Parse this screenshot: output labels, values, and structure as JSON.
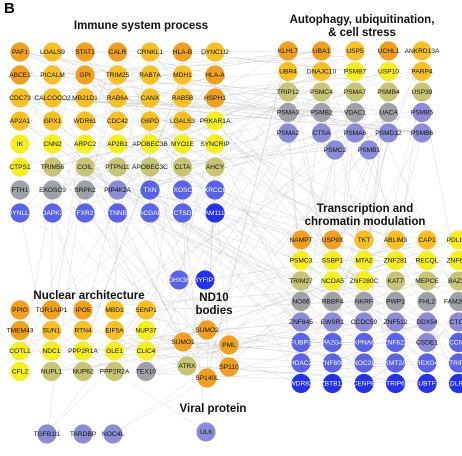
{
  "panel_letter": "B",
  "titles": {
    "immune": "Immune system process",
    "autophagy_1": "Autophagy, ubiquitination,",
    "autophagy_2": "& cell stress",
    "transcription_1": "Transcription and",
    "transcription_2": "chromatin modulation",
    "nuclear": "Nuclear architecture",
    "nd10_1": "ND10",
    "nd10_2": "bodies",
    "viral": "Viral protein"
  },
  "colors": {
    "dark_orange": "#F0A020",
    "orange": "#F6C026",
    "yellow": "#F4EE22",
    "khaki": "#C8C476",
    "gray": "#9FA1A8",
    "lavender": "#8C8CD6",
    "blue": "#5A62E6",
    "dark_blue": "#2431E8",
    "edge": "#BEBEBE"
  },
  "nodes": {
    "immune": [
      [
        "PAF1",
        "dark_orange"
      ],
      [
        "LGALS9",
        "orange"
      ],
      [
        "STAT1",
        "dark_orange"
      ],
      [
        "CALR",
        "dark_orange"
      ],
      [
        "CRNKL1",
        "orange"
      ],
      [
        "HLA-B",
        "dark_orange"
      ],
      [
        "DYNC1I2",
        "orange"
      ],
      [
        "ABCE1",
        "dark_orange"
      ],
      [
        "PICALM",
        "orange"
      ],
      [
        "GPI",
        "dark_orange"
      ],
      [
        "TRIM25",
        "orange"
      ],
      [
        "RAB7A",
        "orange"
      ],
      [
        "MDH1",
        "orange"
      ],
      [
        "HLA-A",
        "dark_orange"
      ],
      [
        "CDC73",
        "orange"
      ],
      [
        "CALCOCO2",
        "orange"
      ],
      [
        "MB21D1",
        "orange"
      ],
      [
        "RAB6A",
        "orange"
      ],
      [
        "CANX",
        "orange"
      ],
      [
        "RAB5B",
        "orange"
      ],
      [
        "HSPH1",
        "dark_orange"
      ],
      [
        "AP2A1",
        "orange"
      ],
      [
        "GPX1",
        "orange"
      ],
      [
        "WDR61",
        "orange"
      ],
      [
        "CDC42",
        "orange"
      ],
      [
        "G6PD",
        "orange"
      ],
      [
        "LGALS3",
        "orange"
      ],
      [
        "PRKAR1A",
        "yellow"
      ],
      [
        "IK",
        "yellow"
      ],
      [
        "CNN2",
        "yellow"
      ],
      [
        "ARPC2",
        "yellow"
      ],
      [
        "AP2B1",
        "yellow"
      ],
      [
        "APOBEC3B",
        "yellow"
      ],
      [
        "MYO1E",
        "yellow"
      ],
      [
        "SYNCRIP",
        "yellow"
      ],
      [
        "CTPS1",
        "yellow"
      ],
      [
        "TRIM56",
        "khaki"
      ],
      [
        "COIL",
        "khaki"
      ],
      [
        "PTPN11",
        "khaki"
      ],
      [
        "APOBEC3C",
        "khaki"
      ],
      [
        "CLTA",
        "khaki"
      ],
      [
        "AHCY",
        "khaki"
      ],
      [
        "FTH1",
        "gray"
      ],
      [
        "EXOSC9",
        "gray"
      ],
      [
        "SRPK2",
        "gray"
      ],
      [
        "PIP4K2A",
        "lavender"
      ],
      [
        "TXN",
        "blue"
      ],
      [
        "EXOSC4",
        "blue"
      ],
      [
        "XRCC6",
        "blue"
      ],
      [
        "DYNLL1",
        "blue"
      ],
      [
        "DAPK3",
        "blue"
      ],
      [
        "FXR2",
        "blue"
      ],
      [
        "CTNNB1",
        "blue"
      ],
      [
        "RACGAP1",
        "blue"
      ],
      [
        "CTSD",
        "blue"
      ],
      [
        "FAM111A",
        "dark_blue"
      ]
    ],
    "autophagy": [
      [
        "KLHL7",
        "dark_orange"
      ],
      [
        "UBA1",
        "dark_orange"
      ],
      [
        "USP5",
        "orange"
      ],
      [
        "UCHL1",
        "dark_orange"
      ],
      [
        "ANKRD13A",
        "orange"
      ],
      [
        "UBR4",
        "orange"
      ],
      [
        "DNAJC10",
        "orange"
      ],
      [
        "PSMB7",
        "yellow"
      ],
      [
        "USP10",
        "yellow"
      ],
      [
        "PARP4",
        "orange"
      ],
      [
        "TRIP12",
        "khaki"
      ],
      [
        "PSMC4",
        "khaki"
      ],
      [
        "PSMA7",
        "khaki"
      ],
      [
        "PSMB4",
        "khaki"
      ],
      [
        "USP39",
        "khaki"
      ],
      [
        "PSMA3",
        "gray"
      ],
      [
        "PSMB2",
        "gray"
      ],
      [
        "VDAC1",
        "gray"
      ],
      [
        "UACA",
        "gray"
      ],
      [
        "PSMB5",
        "lavender"
      ],
      [
        "PSMA2",
        "lavender"
      ],
      [
        "CTSA",
        "lavender"
      ],
      [
        "PSMA6",
        "lavender"
      ],
      [
        "PSMD12",
        "lavender"
      ],
      [
        "PSMB6",
        "lavender"
      ],
      [
        "PSMC2",
        "lavender"
      ],
      [
        "PSMB1",
        "lavender"
      ]
    ],
    "transcription": [
      [
        "NAMPT",
        "dark_orange"
      ],
      [
        "USP9X",
        "dark_orange"
      ],
      [
        "TKT",
        "orange"
      ],
      [
        "ABLIM3",
        "orange"
      ],
      [
        "CAP1",
        "orange"
      ],
      [
        "PDLIM1",
        "yellow"
      ],
      [
        "PSMC3",
        "yellow"
      ],
      [
        "SSBP1",
        "yellow"
      ],
      [
        "MTA2",
        "yellow"
      ],
      [
        "ZNF281",
        "yellow"
      ],
      [
        "RECQL",
        "yellow"
      ],
      [
        "ZNF638",
        "yellow"
      ],
      [
        "TRIM27",
        "khaki"
      ],
      [
        "NCOA5",
        "yellow"
      ],
      [
        "ZNF280C",
        "yellow"
      ],
      [
        "KAT7",
        "khaki"
      ],
      [
        "MEPCE",
        "khaki"
      ],
      [
        "BAZ2A",
        "khaki"
      ],
      [
        "NO66",
        "gray"
      ],
      [
        "RBBP4",
        "gray"
      ],
      [
        "NKRF",
        "gray"
      ],
      [
        "PWP1",
        "gray"
      ],
      [
        "FHL2",
        "gray"
      ],
      [
        "FAM208A",
        "gray"
      ],
      [
        "ZNF845",
        "lavender"
      ],
      [
        "EWSR1",
        "lavender"
      ],
      [
        "CCDC59",
        "lavender"
      ],
      [
        "ZNF512",
        "lavender"
      ],
      [
        "DDX54",
        "lavender"
      ],
      [
        "CTCF",
        "lavender"
      ],
      [
        "FUBP3",
        "blue"
      ],
      [
        "PA2G4",
        "blue"
      ],
      [
        "KPNA6",
        "blue"
      ],
      [
        "ZNF622",
        "blue"
      ],
      [
        "CSDE1",
        "lavender"
      ],
      [
        "CCNK",
        "blue"
      ],
      [
        "HDAC2",
        "blue"
      ],
      [
        "ZNF800",
        "blue"
      ],
      [
        "NOC2L",
        "blue"
      ],
      [
        "KMT2A",
        "blue"
      ],
      [
        "REXO4",
        "blue"
      ],
      [
        "TRIP4",
        "blue"
      ],
      [
        "WDR82",
        "dark_blue"
      ],
      [
        "ZBTB11",
        "dark_blue"
      ],
      [
        "CENPB",
        "dark_blue"
      ],
      [
        "TRIP6",
        "dark_blue"
      ],
      [
        "UBTF",
        "dark_blue"
      ],
      [
        "LDLRL2",
        "dark_blue"
      ]
    ],
    "nuclear": [
      [
        "PPIG",
        "dark_orange"
      ],
      [
        "TOR1AIP1",
        "dark_orange"
      ],
      [
        "IPO5",
        "dark_orange"
      ],
      [
        "MBD1",
        "orange"
      ],
      [
        "SENP1",
        "orange"
      ],
      [
        "TMEM43",
        "dark_orange"
      ],
      [
        "SUN1",
        "orange"
      ],
      [
        "RTN4",
        "orange"
      ],
      [
        "EIF5A",
        "orange"
      ],
      [
        "NUP37",
        "yellow"
      ],
      [
        "COTL1",
        "yellow"
      ],
      [
        "NDC1",
        "yellow"
      ],
      [
        "PPP2R1A",
        "yellow"
      ],
      [
        "GLE1",
        "yellow"
      ],
      [
        "CLIC4",
        "yellow"
      ],
      [
        "CFL2",
        "yellow"
      ],
      [
        "NUPL1",
        "khaki"
      ],
      [
        "NUP62",
        "khaki"
      ],
      [
        "PPP2R2A",
        "khaki"
      ],
      [
        "TEX10",
        "gray"
      ],
      [
        "TGFB1I1",
        "lavender"
      ],
      [
        "TARDBP",
        "lavender"
      ],
      [
        "NOC4L",
        "lavender"
      ]
    ],
    "nd10": [
      [
        "SUMO2",
        "dark_orange"
      ],
      [
        "SUMO1",
        "dark_orange"
      ],
      [
        "PML",
        "dark_orange"
      ],
      [
        "ATRX",
        "khaki"
      ],
      [
        "SP110",
        "dark_orange"
      ],
      [
        "SP140L",
        "dark_orange"
      ]
    ],
    "mid": [
      [
        "DHX36",
        "blue"
      ],
      [
        "GYFIP1",
        "dark_blue"
      ]
    ],
    "viral": [
      [
        "UL6",
        "lavender"
      ]
    ]
  }
}
